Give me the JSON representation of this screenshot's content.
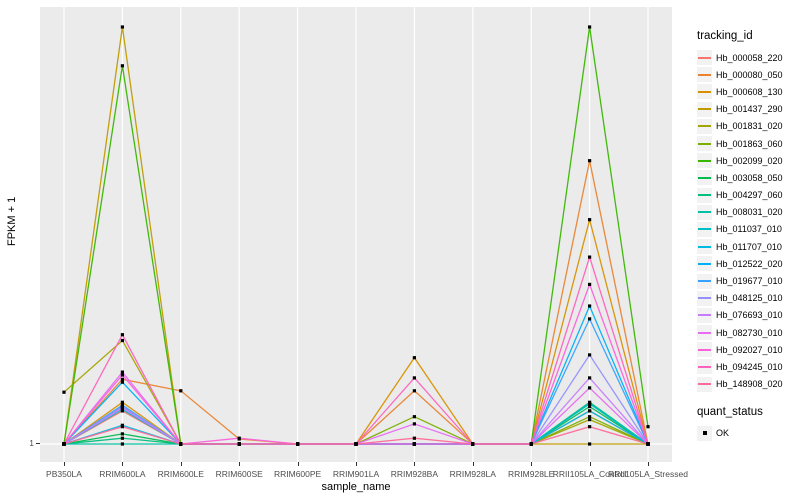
{
  "figure": {
    "panel_background": "#EBEBEB",
    "gridline_color": "#FFFFFF",
    "point_color": "#000000",
    "tick_mark_color": "#333333",
    "tick_label_color": "#4D4D4D"
  },
  "y_axis": {
    "title": "FPKM + 1",
    "tick_labels": [
      "1"
    ]
  },
  "x_axis": {
    "title": "sample_name"
  },
  "legend": {
    "tracking_title": "tracking_id",
    "quant_title": "quant_status",
    "quant_items": [
      "OK"
    ]
  },
  "chart_data": {
    "type": "line",
    "title": "",
    "xlabel": "sample_name",
    "ylabel": "FPKM + 1",
    "y_tick_labels": [
      "1"
    ],
    "ylim": [
      1,
      31.4
    ],
    "grid": "ggplot-white-on-gray",
    "legend_position": "right",
    "point_shape": "filled-black-square",
    "x_categories": [
      "PB350LA",
      "RRIM600LA",
      "RRIM600LE",
      "RRIM600SE",
      "RRIM600PE",
      "RRIM901LA",
      "RRIM928BA",
      "RRIM928LA",
      "RRIM928LE",
      "RRII105LA_Control",
      "RRII105LA_Stressed"
    ],
    "series": [
      {
        "name": "Hb_000058_220",
        "color": "#F8766D",
        "values": [
          1,
          3.3,
          1,
          1,
          1,
          1,
          1,
          1,
          1,
          3.3,
          1
        ]
      },
      {
        "name": "Hb_000080_050",
        "color": "#EA8331",
        "values": [
          1,
          5.5,
          4.7,
          1.35,
          1,
          1,
          4.7,
          1,
          1,
          20.7,
          1
        ]
      },
      {
        "name": "Hb_000608_130",
        "color": "#D89000",
        "values": [
          1,
          3.9,
          1,
          1,
          1,
          1,
          7.0,
          1,
          1,
          16.6,
          1
        ]
      },
      {
        "name": "Hb_001437_290",
        "color": "#C09B00",
        "values": [
          1,
          30,
          1,
          1,
          1,
          1,
          1,
          1,
          1,
          1,
          1
        ]
      },
      {
        "name": "Hb_001831_020",
        "color": "#A3A500",
        "values": [
          4.6,
          8.2,
          1,
          1,
          1,
          1,
          1,
          1,
          1,
          2.7,
          1
        ]
      },
      {
        "name": "Hb_001863_060",
        "color": "#7CAE00",
        "values": [
          1,
          3.6,
          1,
          1,
          1,
          1,
          2.9,
          1,
          1,
          2.9,
          1
        ]
      },
      {
        "name": "Hb_002099_020",
        "color": "#39B600",
        "values": [
          1,
          27.3,
          1,
          1,
          1,
          1,
          1,
          1,
          1,
          30,
          2.2
        ]
      },
      {
        "name": "Hb_003058_050",
        "color": "#00BB4E",
        "values": [
          1,
          1.7,
          1,
          1,
          1,
          1,
          1,
          1,
          1,
          3.6,
          1
        ]
      },
      {
        "name": "Hb_004297_060",
        "color": "#00BF7D",
        "values": [
          1,
          1.4,
          1,
          1,
          1,
          1,
          1,
          1,
          1,
          3.9,
          1
        ]
      },
      {
        "name": "Hb_008031_020",
        "color": "#00C1A3",
        "values": [
          1,
          1,
          1,
          1,
          1,
          1,
          1,
          1,
          1,
          3.8,
          1
        ]
      },
      {
        "name": "Hb_011037_010",
        "color": "#00BFC4",
        "values": [
          1,
          3.4,
          1,
          1,
          1,
          1,
          1,
          1,
          1,
          3.8,
          1
        ]
      },
      {
        "name": "Hb_011707_010",
        "color": "#00BAE0",
        "values": [
          1,
          2.3,
          1,
          1,
          1,
          1,
          1,
          1,
          1,
          3.3,
          1
        ]
      },
      {
        "name": "Hb_012522_020",
        "color": "#00B0F6",
        "values": [
          1,
          5.3,
          1,
          1,
          1,
          1,
          1,
          1,
          1,
          10.6,
          1
        ]
      },
      {
        "name": "Hb_019677_010",
        "color": "#35A2FF",
        "values": [
          1,
          3.7,
          1,
          1,
          1,
          1,
          1,
          1,
          1,
          9.7,
          1
        ]
      },
      {
        "name": "Hb_048125_010",
        "color": "#9590FF",
        "values": [
          1,
          3.6,
          1,
          1,
          1,
          1,
          1,
          1,
          1,
          7.2,
          1
        ]
      },
      {
        "name": "Hb_076693_010",
        "color": "#C77CFF",
        "values": [
          1,
          3.5,
          1,
          1,
          1,
          1,
          1,
          1,
          1,
          5.6,
          1
        ]
      },
      {
        "name": "Hb_082730_010",
        "color": "#E76BF3",
        "values": [
          1,
          6.0,
          1,
          1,
          1,
          1,
          2.4,
          1,
          1,
          4.9,
          1
        ]
      },
      {
        "name": "Hb_092027_010",
        "color": "#FA62DB",
        "values": [
          1,
          5.8,
          1,
          1.4,
          1,
          1,
          1,
          1,
          1,
          12.1,
          1
        ]
      },
      {
        "name": "Hb_094245_010",
        "color": "#FF62BC",
        "values": [
          1,
          8.6,
          1,
          1,
          1,
          1,
          5.6,
          1,
          1,
          14.0,
          1
        ]
      },
      {
        "name": "Hb_148908_020",
        "color": "#FF6A98",
        "values": [
          1,
          2.2,
          1,
          1,
          1,
          1,
          1.4,
          1,
          1,
          2.2,
          1
        ]
      }
    ],
    "quant_status_value": "OK"
  }
}
